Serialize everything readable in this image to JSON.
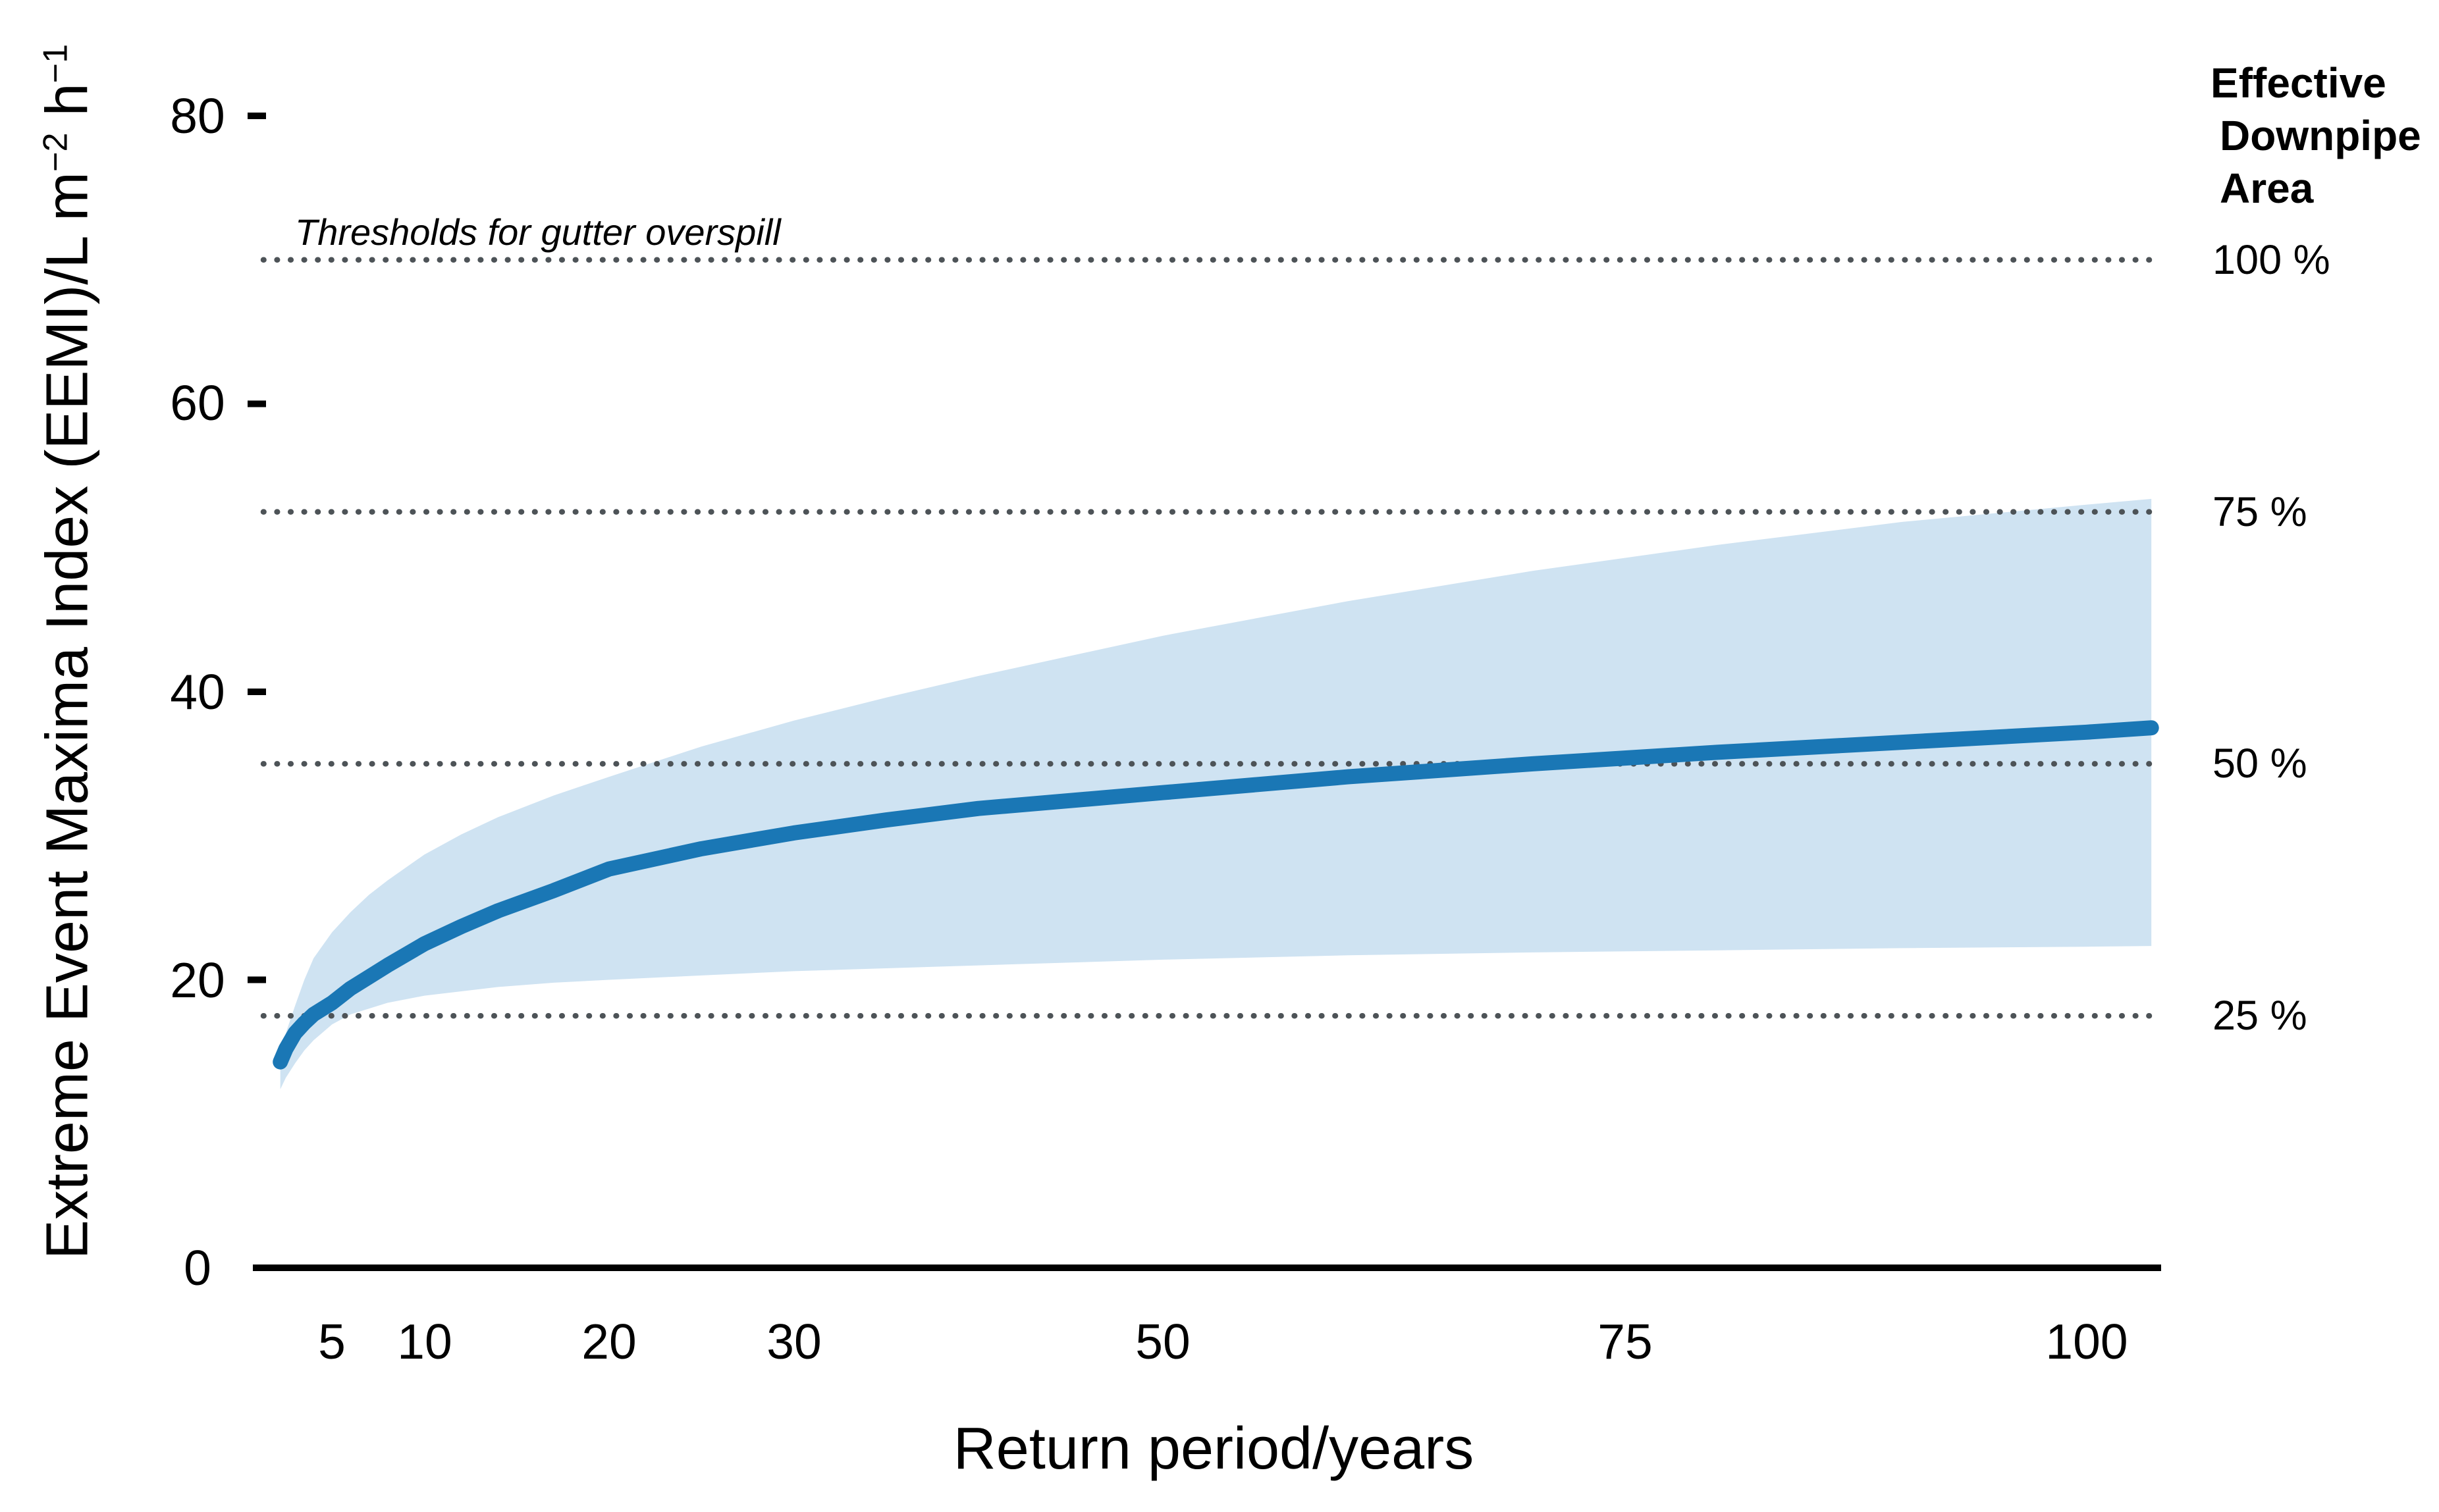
{
  "figure": {
    "x_axis_title": "Return period/years",
    "y_axis_title": {
      "prefix": "Extreme Event Maxima Index (EEMI)/L m",
      "sup1": "−2",
      "mid": " h",
      "sup2": "−1"
    },
    "annotation": "Thresholds for gutter overspill",
    "right_legend_lines": [
      "Effective",
      "Downpipe",
      "Area"
    ]
  },
  "chart_data": {
    "type": "line",
    "title": "",
    "xlabel": "Return period/years",
    "ylabel": "Extreme Event Maxima Index (EEMI)/L m^-2 h^-1",
    "xlim": [
      0.7,
      104
    ],
    "ylim": [
      0,
      80
    ],
    "x_ticks": [
      5,
      10,
      20,
      30,
      50,
      75,
      100
    ],
    "y_ticks": [
      0,
      20,
      40,
      60,
      80
    ],
    "grid": false,
    "annotation": "Thresholds for gutter overspill",
    "right_axis_header": "Effective Downpipe Area",
    "thresholds": [
      {
        "label": "100 %",
        "value": 70
      },
      {
        "label": "75 %",
        "value": 52.5
      },
      {
        "label": "50 %",
        "value": 35
      },
      {
        "label": "25 %",
        "value": 17.5
      }
    ],
    "threshold_line_color": "#4d5357",
    "band_color": "#cfe3f2",
    "line_color": "#1a77b5",
    "series": {
      "x": [
        2.2,
        2.5,
        3,
        3.5,
        4,
        5,
        6,
        7,
        8,
        10,
        12,
        14,
        17,
        20,
        25,
        30,
        35,
        40,
        50,
        60,
        70,
        80,
        90,
        100,
        103.5
      ],
      "estimate": [
        14.3,
        15.2,
        16.3,
        17.0,
        17.6,
        18.4,
        19.4,
        20.2,
        21.0,
        22.5,
        23.7,
        24.8,
        26.2,
        27.7,
        29.1,
        30.2,
        31.1,
        31.9,
        33.0,
        34.1,
        35.0,
        35.8,
        36.5,
        37.2,
        37.5
      ],
      "ci_upper": [
        14.8,
        16.3,
        18.2,
        20.0,
        21.5,
        23.3,
        24.7,
        25.9,
        26.9,
        28.7,
        30.1,
        31.3,
        32.8,
        34.1,
        36.2,
        38.0,
        39.6,
        41.1,
        43.9,
        46.3,
        48.4,
        50.2,
        51.8,
        53.0,
        53.4
      ],
      "ci_lower": [
        12.4,
        13.2,
        14.2,
        15.1,
        15.8,
        16.9,
        17.6,
        18.0,
        18.4,
        18.9,
        19.2,
        19.5,
        19.8,
        20.0,
        20.3,
        20.6,
        20.8,
        21.0,
        21.4,
        21.7,
        21.9,
        22.05,
        22.2,
        22.3,
        22.35
      ]
    }
  }
}
